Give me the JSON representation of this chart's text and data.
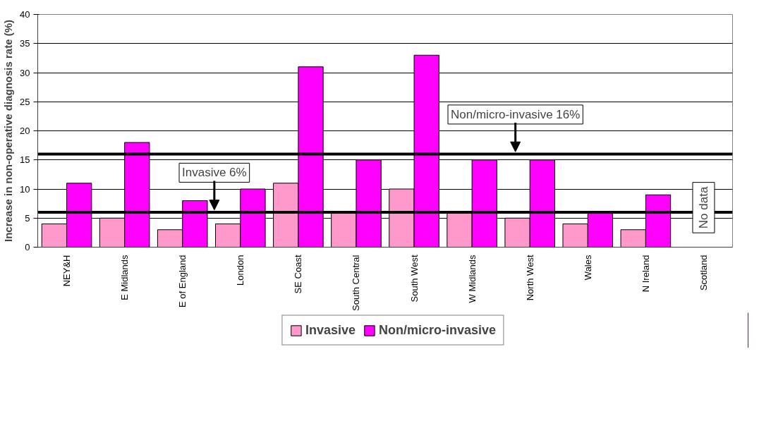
{
  "chart_data": {
    "type": "bar",
    "ylabel": "Increase in non-operative diagnosis rate (%)",
    "categories": [
      "NEY&H",
      "E Midlands",
      "E of England",
      "London",
      "SE Coast",
      "South Central",
      "South West",
      "W Midlands",
      "North West",
      "Wales",
      "N Ireland",
      "Scotland"
    ],
    "series": [
      {
        "name": "Invasive",
        "color": "#ff99cc",
        "values": [
          4,
          5,
          3,
          4,
          11,
          6,
          10,
          6,
          5,
          4,
          3,
          null
        ]
      },
      {
        "name": "Non/micro-invasive",
        "color": "#ff00ff",
        "values": [
          11,
          18,
          8,
          10,
          31,
          15,
          33,
          15,
          15,
          6,
          9,
          null
        ]
      }
    ],
    "ylim": [
      0,
      40
    ],
    "yticks": [
      0,
      5,
      10,
      15,
      20,
      25,
      30,
      35,
      40
    ],
    "grid": "y",
    "legend": "bottom",
    "ref_lines": [
      {
        "axis": "y",
        "value": 6,
        "label": "Invasive 6%",
        "color": "#000000"
      },
      {
        "axis": "y",
        "value": 16,
        "label": "Non/micro-invasive 16%",
        "color": "#000000"
      }
    ],
    "annotations": [
      "No data"
    ]
  }
}
